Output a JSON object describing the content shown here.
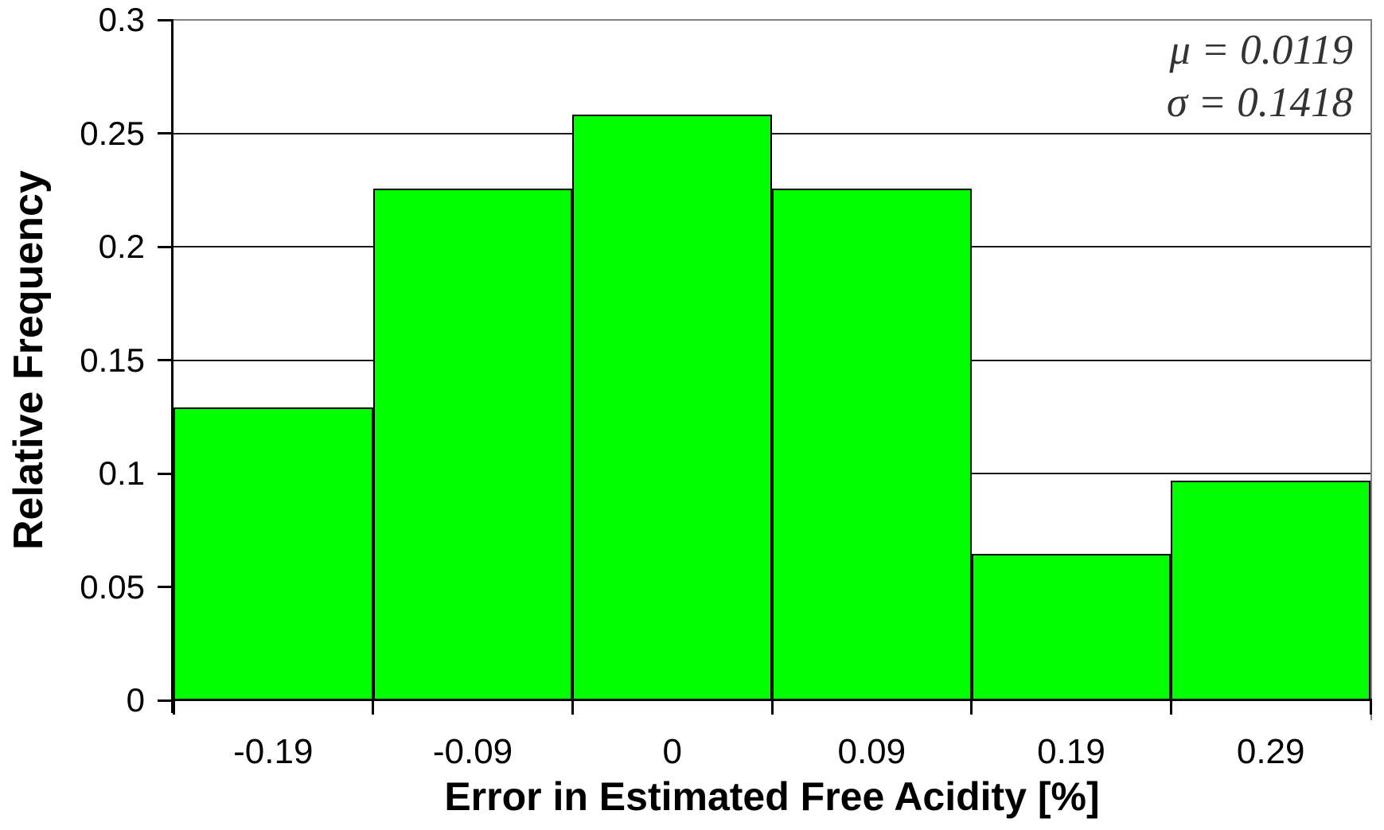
{
  "chart_data": {
    "type": "bar",
    "subtype": "histogram",
    "title": "",
    "xlabel": "Error in Estimated Free Acidity [%]",
    "ylabel": "Relative Frequency",
    "categories": [
      "-0.19",
      "-0.09",
      "0",
      "0.09",
      "0.19",
      "0.29"
    ],
    "values": [
      0.129,
      0.2258,
      0.2581,
      0.2258,
      0.0645,
      0.0968
    ],
    "ylim": [
      0,
      0.3
    ],
    "ytick_step": 0.05,
    "ytick_labels": [
      "0",
      "0.05",
      "0.1",
      "0.15",
      "0.2",
      "0.25",
      "0.3"
    ],
    "grid": "horizontal",
    "bar_gap": 0,
    "legend": "none",
    "annotations": [
      {
        "text": "μ = 0.0119"
      },
      {
        "text": "σ = 0.1418"
      }
    ]
  },
  "colors": {
    "bar_fill": "#00FF00",
    "bar_border": "#000000",
    "gridline": "#1a1a1a",
    "plot_border": "#808080",
    "axis": "#000000",
    "annotation_text": "#333333",
    "background": "#ffffff"
  }
}
